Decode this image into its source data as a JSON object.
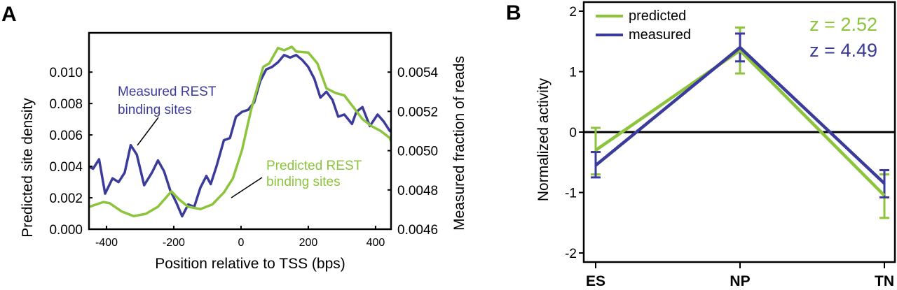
{
  "colors": {
    "predicted": "#8cc43c",
    "measured": "#3b3b9b",
    "axis": "#000000"
  },
  "chart_data": [
    {
      "panel_label": "A",
      "type": "line",
      "xlabel": "Position relative to TSS (bps)",
      "ylabel_left": "Predicted site density",
      "ylabel_right": "Measured fraction of reads",
      "xlim": [
        -452,
        446
      ],
      "ylim_left": [
        0,
        0.0125
      ],
      "ylim_right": [
        0.0046,
        0.0056
      ],
      "x_ticks": [
        "-400",
        "-200",
        "0",
        "200",
        "400"
      ],
      "x_tick_values": [
        -400,
        -200,
        0,
        200,
        400
      ],
      "y_ticks_left": [
        "0.000",
        "0.002",
        "0.004",
        "0.006",
        "0.008",
        "0.010"
      ],
      "y_tick_values_left": [
        0,
        0.002,
        0.004,
        0.006,
        0.008,
        0.01
      ],
      "y_ticks_right": [
        "0.0046",
        "0.0048",
        "0.0050",
        "0.0052",
        "0.0054"
      ],
      "y_tick_values_right": [
        0.0046,
        0.0048,
        0.005,
        0.0052,
        0.0054
      ],
      "grid": false,
      "annotations": {
        "measured": [
          "Measured REST",
          "binding sites"
        ],
        "predicted": [
          "Predicted REST",
          "binding sites"
        ]
      },
      "series": [
        {
          "key": "measured",
          "axis": "right",
          "x": [
            -460,
            -440,
            -422,
            -404,
            -382,
            -364,
            -346,
            -328,
            -310,
            -288,
            -265,
            -247,
            -229,
            -211,
            -193,
            -175,
            -157,
            -139,
            -121,
            -103,
            -90,
            -73,
            -51,
            -33,
            -15,
            3,
            21,
            39,
            57,
            75,
            92,
            110,
            128,
            146,
            164,
            182,
            200,
            218,
            236,
            254,
            272,
            289,
            307,
            330,
            343,
            361,
            383,
            406,
            424,
            442,
            456
          ],
          "y": [
            0.004926,
            0.004908,
            0.004956,
            0.004781,
            0.004859,
            0.00484,
            0.004888,
            0.005028,
            0.00498,
            0.004824,
            0.004888,
            0.00495,
            0.004896,
            0.0048,
            0.004738,
            0.004666,
            0.004726,
            0.004714,
            0.004811,
            0.004871,
            0.00483,
            0.00492,
            0.005053,
            0.005064,
            0.005173,
            0.005198,
            0.005208,
            0.005246,
            0.005354,
            0.005414,
            0.005426,
            0.00545,
            0.005487,
            0.005474,
            0.005487,
            0.005462,
            0.005426,
            0.005366,
            0.00527,
            0.0053,
            0.005258,
            0.005173,
            0.005184,
            0.005136,
            0.005198,
            0.005222,
            0.005125,
            0.005184,
            0.005149,
            0.005101,
            0.005088
          ]
        },
        {
          "key": "predicted",
          "axis": "left",
          "x": [
            -460,
            -409,
            -391,
            -355,
            -319,
            -283,
            -247,
            -207,
            -184,
            -157,
            -121,
            -85,
            -51,
            -24,
            3,
            30,
            48,
            66,
            84,
            110,
            128,
            151,
            164,
            200,
            227,
            254,
            281,
            307,
            334,
            361,
            388,
            415,
            442,
            456
          ],
          "y": [
            0.00136,
            0.00173,
            0.00166,
            0.00113,
            0.00083,
            0.00098,
            0.00143,
            0.00241,
            0.00189,
            0.00143,
            0.00128,
            0.00158,
            0.00234,
            0.00324,
            0.00505,
            0.0076,
            0.00897,
            0.01033,
            0.01056,
            0.01154,
            0.01139,
            0.01161,
            0.01131,
            0.01124,
            0.01056,
            0.00897,
            0.00867,
            0.00852,
            0.00777,
            0.00701,
            0.00656,
            0.00626,
            0.00581,
            0.00505
          ]
        }
      ]
    },
    {
      "panel_label": "B",
      "type": "line",
      "ylabel": "Normalized activity",
      "xlabel": "",
      "categories": [
        "ES",
        "NP",
        "TN"
      ],
      "ylim": [
        -2.15,
        2.15
      ],
      "y_ticks": [
        "-2",
        "-1",
        "0",
        "1",
        "2"
      ],
      "y_tick_values": [
        -2,
        -1,
        0,
        1,
        2
      ],
      "zero_line": true,
      "legend": {
        "placement": "top-left",
        "entries": [
          "predicted",
          "measured"
        ]
      },
      "z_scores": [
        "z = 2.52",
        "z = 4.49"
      ],
      "series": [
        {
          "name": "predicted",
          "key": "predicted",
          "values": [
            -0.3,
            1.35,
            -1.05
          ],
          "err_low": [
            -0.7,
            0.97,
            -1.42
          ],
          "err_high": [
            0.07,
            1.73,
            -0.7
          ]
        },
        {
          "name": "measured",
          "key": "measured",
          "values": [
            -0.55,
            1.4,
            -0.85
          ],
          "err_low": [
            -0.75,
            1.17,
            -1.08
          ],
          "err_high": [
            -0.33,
            1.63,
            -0.63
          ]
        }
      ]
    }
  ]
}
